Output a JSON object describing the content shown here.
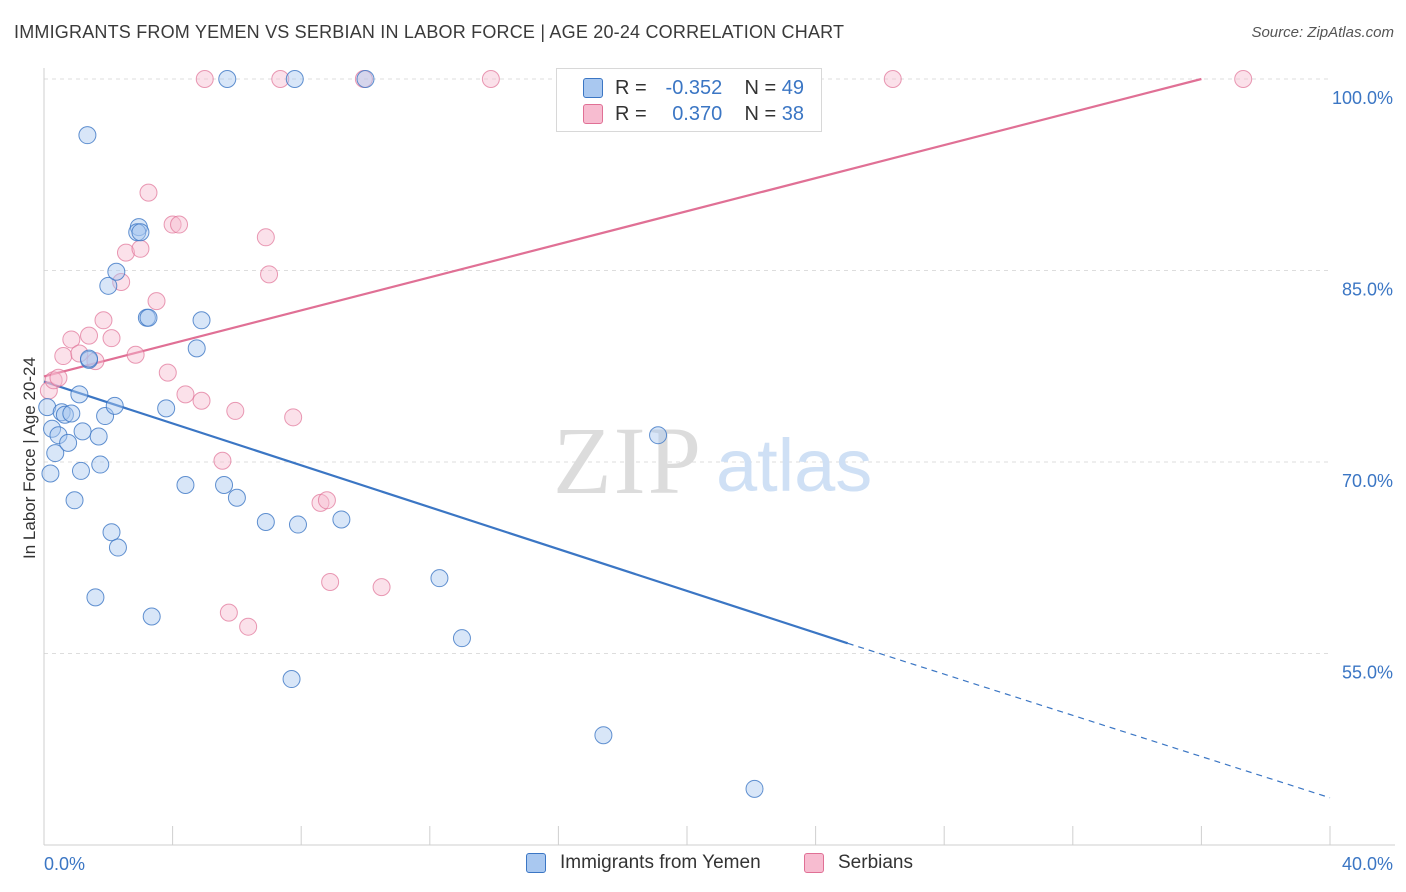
{
  "header": {
    "title": "IMMIGRANTS FROM YEMEN VS SERBIAN IN LABOR FORCE | AGE 20-24 CORRELATION CHART",
    "source": "Source: ZipAtlas.com"
  },
  "watermark": {
    "zip": "ZIP",
    "atlas": "atlas"
  },
  "legend": {
    "rows": [
      {
        "r_label": "R =",
        "r_value": "-0.352",
        "n_label": "N =",
        "n_value": "49"
      },
      {
        "r_label": "R =",
        "r_value": "0.370",
        "n_label": "N =",
        "n_value": "38"
      }
    ]
  },
  "colors": {
    "yemen": "#3b76c4",
    "yemen_fill": "#a9c8f0",
    "serbian": "#e07095",
    "serbian_fill": "#f7bcd0",
    "tick_text": "#3b76c4",
    "grid": "#dddddd"
  },
  "chart_data": {
    "type": "scatter",
    "title": "IMMIGRANTS FROM YEMEN VS SERBIAN IN LABOR FORCE | AGE 20-24 CORRELATION CHART",
    "xlabel": "",
    "ylabel": "In Labor Force | Age 20-24",
    "xlim": [
      0,
      40
    ],
    "ylim": [
      40,
      101
    ],
    "x_tick_labels": [
      "0.0%",
      "40.0%"
    ],
    "y_ticks": [
      55,
      70,
      85,
      100
    ],
    "y_tick_labels": [
      "55.0%",
      "70.0%",
      "85.0%",
      "100.0%"
    ],
    "series": [
      {
        "name": "Immigrants from Yemen",
        "color": "#3b76c4",
        "R": -0.352,
        "N": 49,
        "trend": {
          "x0": 0,
          "y0": 76.3,
          "x1": 25.0,
          "y1": 55.8,
          "dash_to_x": 40,
          "dash_to_y": 43.7
        },
        "points": [
          [
            0.1,
            74.3
          ],
          [
            0.2,
            69.1
          ],
          [
            0.25,
            72.6
          ],
          [
            0.35,
            70.7
          ],
          [
            0.45,
            72.1
          ],
          [
            0.55,
            73.9
          ],
          [
            0.65,
            73.7
          ],
          [
            0.75,
            71.5
          ],
          [
            0.85,
            73.8
          ],
          [
            0.95,
            67.0
          ],
          [
            1.1,
            75.3
          ],
          [
            1.15,
            69.3
          ],
          [
            1.2,
            72.4
          ],
          [
            1.35,
            95.6
          ],
          [
            1.4,
            78.0
          ],
          [
            1.6,
            59.4
          ],
          [
            1.7,
            72.0
          ],
          [
            1.75,
            69.8
          ],
          [
            1.9,
            73.6
          ],
          [
            2.0,
            83.8
          ],
          [
            2.1,
            64.5
          ],
          [
            2.2,
            74.4
          ],
          [
            2.25,
            84.9
          ],
          [
            2.3,
            63.3
          ],
          [
            2.95,
            88.4
          ],
          [
            2.9,
            88.0
          ],
          [
            3.2,
            81.3
          ],
          [
            3.25,
            81.3
          ],
          [
            3.35,
            57.9
          ],
          [
            3.8,
            74.2
          ],
          [
            4.4,
            68.2
          ],
          [
            4.75,
            78.9
          ],
          [
            4.9,
            81.1
          ],
          [
            5.7,
            100.0
          ],
          [
            5.6,
            68.2
          ],
          [
            6.0,
            67.2
          ],
          [
            6.9,
            65.3
          ],
          [
            7.8,
            100.0
          ],
          [
            7.7,
            53.0
          ],
          [
            7.9,
            65.1
          ],
          [
            9.25,
            65.5
          ],
          [
            10.0,
            100.0
          ],
          [
            12.3,
            60.9
          ],
          [
            13.0,
            56.2
          ],
          [
            19.1,
            72.1
          ],
          [
            17.4,
            48.6
          ],
          [
            22.1,
            44.4
          ],
          [
            1.4,
            78.1
          ],
          [
            3.0,
            88.0
          ]
        ]
      },
      {
        "name": "Serbians",
        "color": "#e07095",
        "R": 0.37,
        "N": 38,
        "trend": {
          "x0": 0,
          "y0": 76.7,
          "x1": 36.0,
          "y1": 100.0
        },
        "points": [
          [
            0.15,
            75.6
          ],
          [
            0.3,
            76.4
          ],
          [
            0.45,
            76.6
          ],
          [
            0.6,
            78.3
          ],
          [
            0.85,
            79.6
          ],
          [
            1.1,
            78.5
          ],
          [
            1.4,
            79.9
          ],
          [
            1.6,
            77.9
          ],
          [
            1.85,
            81.1
          ],
          [
            2.1,
            79.7
          ],
          [
            2.4,
            84.1
          ],
          [
            2.55,
            86.4
          ],
          [
            2.85,
            78.4
          ],
          [
            3.0,
            86.7
          ],
          [
            3.25,
            91.1
          ],
          [
            3.5,
            82.6
          ],
          [
            3.85,
            77.0
          ],
          [
            4.0,
            88.6
          ],
          [
            4.2,
            88.6
          ],
          [
            4.4,
            75.3
          ],
          [
            4.9,
            74.8
          ],
          [
            5.0,
            100.0
          ],
          [
            5.55,
            70.1
          ],
          [
            5.75,
            58.2
          ],
          [
            5.95,
            74.0
          ],
          [
            6.35,
            57.1
          ],
          [
            6.9,
            87.6
          ],
          [
            7.0,
            84.7
          ],
          [
            7.35,
            100.0
          ],
          [
            7.75,
            73.5
          ],
          [
            8.6,
            66.8
          ],
          [
            8.8,
            67.0
          ],
          [
            8.9,
            60.6
          ],
          [
            9.95,
            100.0
          ],
          [
            10.5,
            60.2
          ],
          [
            13.9,
            100.0
          ],
          [
            26.4,
            100.0
          ],
          [
            37.3,
            100.0
          ]
        ]
      }
    ]
  }
}
